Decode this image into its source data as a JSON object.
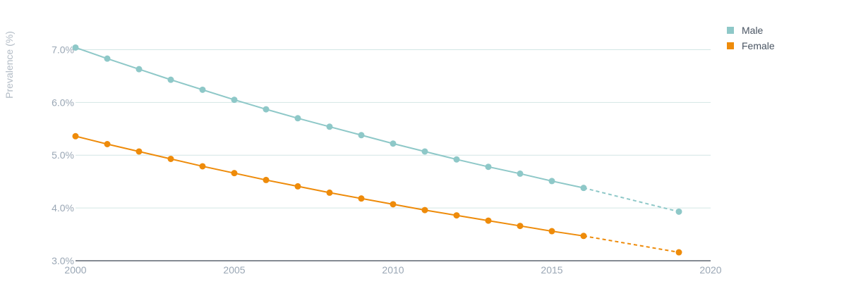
{
  "chart_data": {
    "type": "line",
    "ylabel": "Prevalence (%)",
    "xlabel": "",
    "xlim": [
      2000,
      2020
    ],
    "ylim": [
      3.0,
      7.5
    ],
    "x_ticks": [
      "2000",
      "2005",
      "2010",
      "2015",
      "2020"
    ],
    "x_tick_values": [
      2000,
      2005,
      2010,
      2015,
      2020
    ],
    "y_ticks": [
      "3.0%",
      "4.0%",
      "5.0%",
      "6.0%",
      "7.0%"
    ],
    "y_tick_values": [
      3.0,
      4.0,
      5.0,
      6.0,
      7.0
    ],
    "grid": "horizontal",
    "legend_position": "top-right",
    "series": [
      {
        "name": "Male",
        "color": "#8ec8c8",
        "x": [
          2000,
          2001,
          2002,
          2003,
          2004,
          2005,
          2006,
          2007,
          2008,
          2009,
          2010,
          2011,
          2012,
          2013,
          2014,
          2015,
          2016
        ],
        "values": [
          7.04,
          6.83,
          6.63,
          6.43,
          6.24,
          6.05,
          5.87,
          5.7,
          5.54,
          5.38,
          5.22,
          5.07,
          4.92,
          4.78,
          4.65,
          4.51,
          4.38
        ],
        "projected_x": [
          2016,
          2019
        ],
        "projected_values": [
          4.38,
          3.93
        ]
      },
      {
        "name": "Female",
        "color": "#ee8b0a",
        "x": [
          2000,
          2001,
          2002,
          2003,
          2004,
          2005,
          2006,
          2007,
          2008,
          2009,
          2010,
          2011,
          2012,
          2013,
          2014,
          2015,
          2016
        ],
        "values": [
          5.36,
          5.21,
          5.07,
          4.93,
          4.79,
          4.66,
          4.53,
          4.41,
          4.29,
          4.18,
          4.07,
          3.96,
          3.86,
          3.76,
          3.66,
          3.56,
          3.47
        ],
        "projected_x": [
          2016,
          2019
        ],
        "projected_values": [
          3.47,
          3.16
        ]
      }
    ]
  }
}
